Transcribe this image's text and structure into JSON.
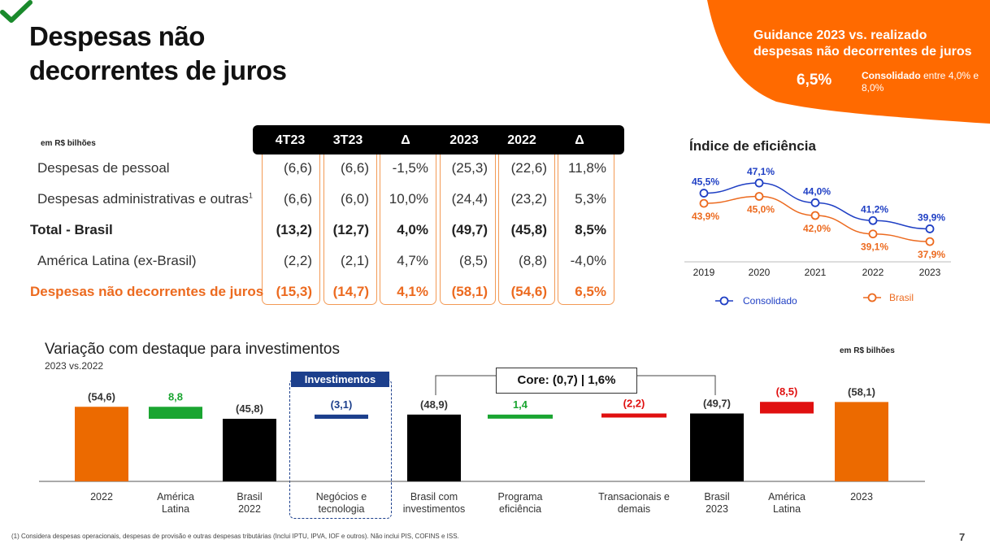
{
  "title_line1": "Despesas não",
  "title_line2": "decorrentes de juros",
  "guidance": {
    "title": "Guidance 2023 vs. realizado despesas não decorrentes de juros",
    "value": "6,5%",
    "note_bold": "Consolidado",
    "note_rest": " entre 4,0% e 8,0%",
    "color": "#ff6a00"
  },
  "table": {
    "unit": "em R$ bilhões",
    "headers": [
      "4T23",
      "3T23",
      "Δ",
      "2023",
      "2022",
      "Δ"
    ],
    "rows": [
      {
        "label": "Despesas de pessoal",
        "sup": "",
        "values": [
          "(6,6)",
          "(6,6)",
          "-1,5%",
          "(25,3)",
          "(22,6)",
          "11,8%"
        ],
        "style": "normal"
      },
      {
        "label": "Despesas administrativas e outras",
        "sup": "1",
        "values": [
          "(6,6)",
          "(6,0)",
          "10,0%",
          "(24,4)",
          "(23,2)",
          "5,3%"
        ],
        "style": "normal"
      },
      {
        "label": "Total - Brasil",
        "sup": "",
        "values": [
          "(13,2)",
          "(12,7)",
          "4,0%",
          "(49,7)",
          "(45,8)",
          "8,5%"
        ],
        "style": "bold"
      },
      {
        "label": "América Latina (ex-Brasil)",
        "sup": "",
        "values": [
          "(2,2)",
          "(2,1)",
          "4,7%",
          "(8,5)",
          "(8,8)",
          "-4,0%"
        ],
        "style": "normal"
      },
      {
        "label": "Despesas não decorrentes de juros",
        "sup": "",
        "values": [
          "(15,3)",
          "(14,7)",
          "4,1%",
          "(58,1)",
          "(54,6)",
          "6,5%"
        ],
        "style": "orange"
      }
    ]
  },
  "efficiency": {
    "title": "Índice de eficiência",
    "legend": [
      "Consolidado",
      "Brasil"
    ],
    "colors": {
      "consolidado": "#1f3fc4",
      "brasil": "#ec6a1f"
    }
  },
  "waterfall": {
    "title": "Variação com destaque para investimentos",
    "subtitle": "2023 vs.2022",
    "unit": "em R$ bilhões",
    "investimentos_label": "Investimentos",
    "core_label": "Core: (0,7) | 1,6%"
  },
  "chart_data": [
    {
      "type": "line",
      "title": "Índice de eficiência",
      "x": [
        "2019",
        "2020",
        "2021",
        "2022",
        "2023"
      ],
      "series": [
        {
          "name": "Consolidado",
          "values": [
            45.5,
            47.1,
            44.0,
            41.2,
            39.9
          ],
          "labels": [
            "45,5%",
            "47,1%",
            "44,0%",
            "41,2%",
            "39,9%"
          ]
        },
        {
          "name": "Brasil",
          "values": [
            43.9,
            45.0,
            42.0,
            39.1,
            37.9
          ],
          "labels": [
            "43,9%",
            "45,0%",
            "42,0%",
            "39,1%",
            "37,9%"
          ]
        }
      ],
      "ylim": [
        36,
        48
      ],
      "legend": "bottom"
    },
    {
      "type": "bar",
      "title": "Variação com destaque para investimentos",
      "categories": [
        "2022",
        "América Latina",
        "Brasil 2022",
        "Negócios e tecnologia",
        "Brasil com investimentos",
        "Programa eficiência",
        "Transacionais e demais",
        "Brasil 2023",
        "América Latina",
        "2023"
      ],
      "category_lines": [
        [
          "2022"
        ],
        [
          "América",
          "Latina"
        ],
        [
          "Brasil",
          "2022"
        ],
        [
          "Negócios e",
          "tecnologia"
        ],
        [
          "Brasil com",
          "investimentos"
        ],
        [
          "Programa",
          "eficiência"
        ],
        [
          "Transacionais e",
          "demais"
        ],
        [
          "Brasil",
          "2023"
        ],
        [
          "América",
          "Latina"
        ],
        [
          "2023"
        ]
      ],
      "values": [
        -54.6,
        8.8,
        -45.8,
        -3.1,
        -48.9,
        1.4,
        -2.2,
        -49.7,
        -8.5,
        -58.1
      ],
      "labels": [
        "(54,6)",
        "8,8",
        "(45,8)",
        "(3,1)",
        "(48,9)",
        "1,4",
        "(2,2)",
        "(49,7)",
        "(8,5)",
        "(58,1)"
      ],
      "kinds": [
        "total",
        "delta",
        "total",
        "delta",
        "total",
        "delta",
        "delta",
        "total",
        "delta",
        "total"
      ],
      "colors": [
        "#ec6a00",
        "#1aa531",
        "#000000",
        "#1c3f8c",
        "#000000",
        "#1aa531",
        "#e01010",
        "#000000",
        "#e01010",
        "#ec6a00"
      ],
      "label_colors": [
        "#333333",
        "#1aa531",
        "#333333",
        "#1c3f8c",
        "#333333",
        "#1aa531",
        "#e01010",
        "#333333",
        "#e01010",
        "#333333"
      ]
    }
  ],
  "footnote": "(1) Considera despesas operacionais, despesas de provisão e outras despesas tributárias (Inclui IPTU, IPVA, IOF e outros). Não inclui PIS, COFINS e ISS.",
  "page_number": "7"
}
